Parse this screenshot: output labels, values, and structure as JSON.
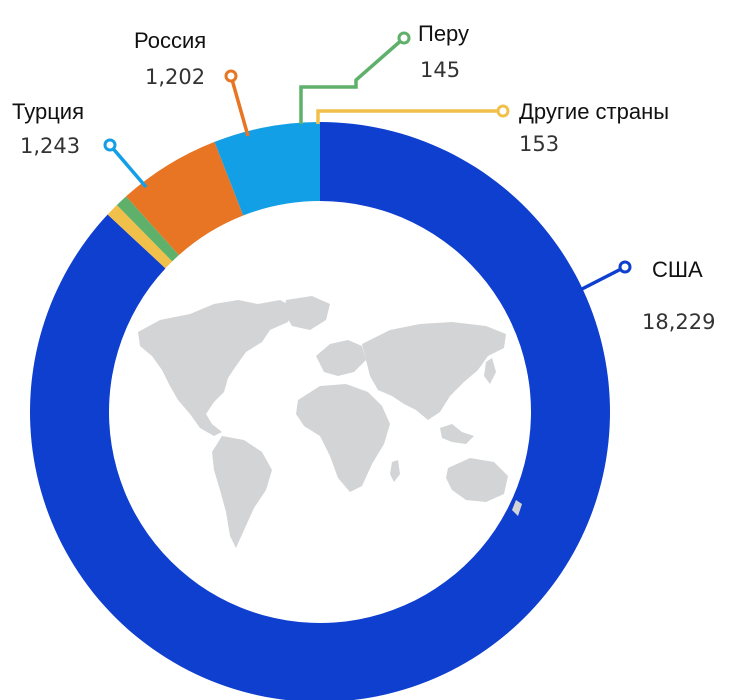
{
  "chart_data": {
    "type": "pie",
    "donut": true,
    "categories": [
      "США",
      "Другие страны",
      "Перу",
      "Россия",
      "Турция"
    ],
    "values": [
      18229,
      153,
      145,
      1202,
      1243
    ],
    "value_labels": [
      "18,229",
      "153",
      "145",
      "1,202",
      "1,243"
    ],
    "colors": [
      "#0f3fcf",
      "#f0c04a",
      "#5fb06a",
      "#e87524",
      "#139fe6"
    ],
    "title": "",
    "legend": "callout labels around donut"
  },
  "decoration": {
    "center_image": "world-map-icon",
    "land_color": "#d3d4d6"
  }
}
